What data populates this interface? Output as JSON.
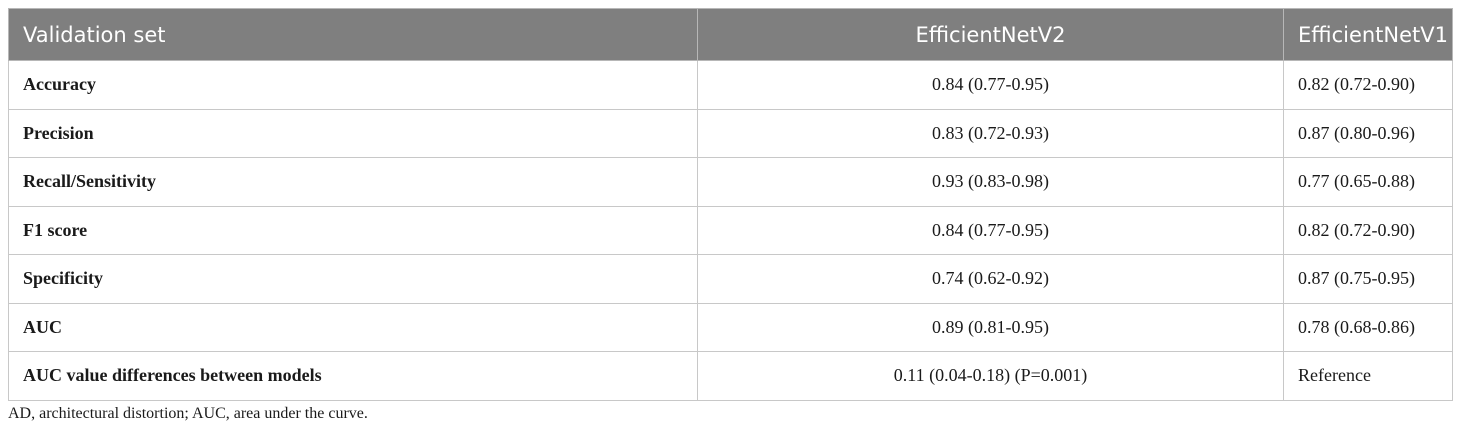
{
  "table": {
    "headers": [
      "Validation set",
      "EfficientNetV2",
      "EfficientNetV1"
    ],
    "rows": [
      [
        "Accuracy",
        "0.84 (0.77-0.95)",
        "0.82 (0.72-0.90)"
      ],
      [
        "Precision",
        "0.83 (0.72-0.93)",
        "0.87 (0.80-0.96)"
      ],
      [
        "Recall/Sensitivity",
        "0.93 (0.83-0.98)",
        "0.77 (0.65-0.88)"
      ],
      [
        "F1 score",
        "0.84 (0.77-0.95)",
        "0.82 (0.72-0.90)"
      ],
      [
        "Specificity",
        "0.74 (0.62-0.92)",
        "0.87 (0.75-0.95)"
      ],
      [
        "AUC",
        "0.89 (0.81-0.95)",
        "0.78 (0.68-0.86)"
      ],
      [
        "AUC value differences between models",
        "0.11 (0.04-0.18) (P=0.001)",
        "Reference"
      ]
    ]
  },
  "footnote": "AD, architectural distortion; AUC, area under the curve.",
  "colors": {
    "header_bg": "#7f7f7f",
    "header_text": "#ffffff",
    "border": "#c8c8c8"
  }
}
